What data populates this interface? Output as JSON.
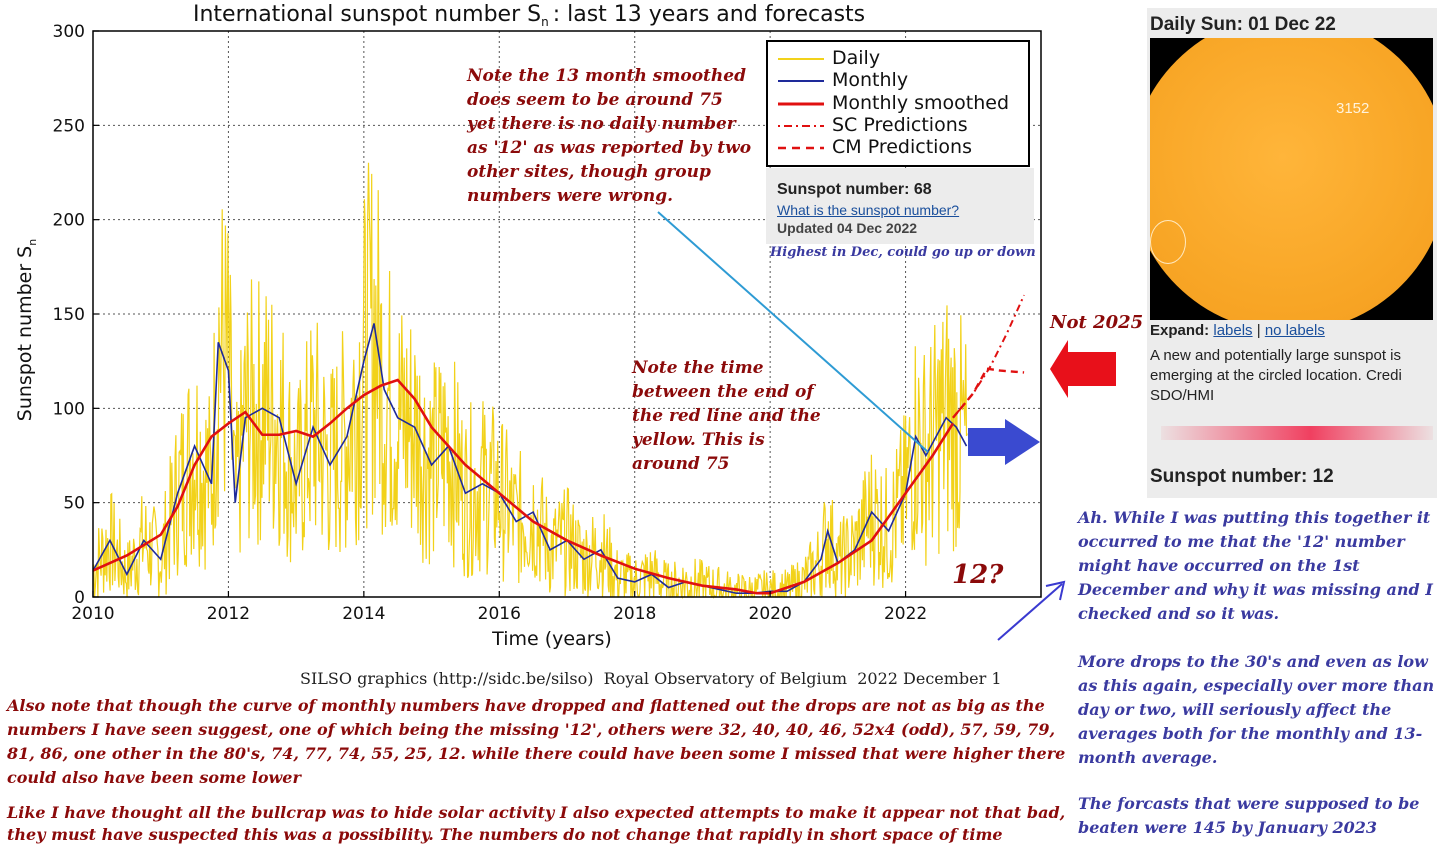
{
  "chart_data": {
    "type": "line",
    "title": "International sunspot number S",
    "title_subscript": "n",
    "title_suffix": ": last 13 years and forecasts",
    "xlabel": "Time (years)",
    "ylabel": "Sunspot number S",
    "ylabel_subscript": "n",
    "xlim": [
      2010,
      2024
    ],
    "ylim": [
      0,
      300
    ],
    "x_ticks": [
      2010,
      2012,
      2014,
      2016,
      2018,
      2020,
      2022
    ],
    "y_ticks": [
      0,
      50,
      100,
      150,
      200,
      250,
      300
    ],
    "grid": true,
    "legend_position": "top-right",
    "legend": [
      "Daily",
      "Monthly",
      "Monthly smoothed",
      "SC Predictions",
      "CM Predictions"
    ],
    "colors": {
      "daily": "#f2d21a",
      "monthly": "#1e2a9a",
      "smoothed": "#e01010",
      "predictions": "#e01010"
    },
    "series": [
      {
        "name": "Monthly",
        "x": [
          2010.0,
          2010.25,
          2010.5,
          2010.75,
          2011.0,
          2011.25,
          2011.5,
          2011.75,
          2011.85,
          2012.0,
          2012.1,
          2012.25,
          2012.5,
          2012.75,
          2013.0,
          2013.25,
          2013.5,
          2013.75,
          2014.0,
          2014.15,
          2014.3,
          2014.5,
          2014.75,
          2015.0,
          2015.25,
          2015.5,
          2015.75,
          2016.0,
          2016.25,
          2016.5,
          2016.75,
          2017.0,
          2017.25,
          2017.5,
          2017.75,
          2018.0,
          2018.25,
          2018.5,
          2018.75,
          2019.0,
          2019.25,
          2019.5,
          2019.75,
          2020.0,
          2020.25,
          2020.5,
          2020.75,
          2020.85,
          2021.0,
          2021.25,
          2021.5,
          2021.75,
          2022.0,
          2022.15,
          2022.3,
          2022.45,
          2022.6,
          2022.75,
          2022.9
        ],
        "values": [
          14,
          30,
          12,
          30,
          20,
          55,
          80,
          60,
          135,
          120,
          50,
          95,
          100,
          95,
          60,
          90,
          70,
          85,
          125,
          145,
          110,
          95,
          90,
          70,
          80,
          55,
          60,
          55,
          40,
          45,
          25,
          30,
          20,
          25,
          10,
          8,
          12,
          5,
          8,
          6,
          4,
          2,
          2,
          3,
          3,
          8,
          20,
          35,
          18,
          25,
          45,
          35,
          55,
          85,
          75,
          85,
          95,
          90,
          80
        ]
      },
      {
        "name": "Monthly smoothed",
        "x": [
          2010.0,
          2010.5,
          2011.0,
          2011.25,
          2011.5,
          2011.75,
          2012.0,
          2012.25,
          2012.5,
          2012.75,
          2013.0,
          2013.25,
          2013.5,
          2013.75,
          2014.0,
          2014.25,
          2014.5,
          2014.75,
          2015.0,
          2015.5,
          2016.0,
          2016.5,
          2017.0,
          2017.5,
          2018.0,
          2018.5,
          2019.0,
          2019.5,
          2019.8,
          2020.0,
          2020.5,
          2021.0,
          2021.5,
          2022.0,
          2022.4,
          2022.7
        ],
        "values": [
          14,
          22,
          33,
          48,
          70,
          85,
          92,
          98,
          86,
          86,
          88,
          85,
          92,
          100,
          107,
          112,
          115,
          105,
          90,
          70,
          55,
          40,
          30,
          22,
          15,
          10,
          6,
          4,
          2,
          2,
          8,
          18,
          30,
          55,
          75,
          92
        ]
      },
      {
        "name": "SC Predictions",
        "x": [
          2022.7,
          2023.0,
          2023.25,
          2023.5,
          2023.75
        ],
        "values": [
          95,
          108,
          122,
          140,
          160
        ]
      },
      {
        "name": "CM Predictions",
        "x": [
          2022.7,
          2023.0,
          2023.2,
          2023.4,
          2023.75
        ],
        "values": [
          95,
          108,
          121,
          120,
          119
        ]
      }
    ]
  },
  "legend_labels": {
    "daily": "Daily",
    "monthly": "Monthly",
    "smoothed": "Monthly smoothed",
    "sc": "SC Predictions",
    "cm": "CM Predictions"
  },
  "info_box": {
    "title": "Sunspot number: 68",
    "link": "What is the sunspot number?",
    "updated": "Updated 04 Dec 2022",
    "note": "Highest in Dec, could go up or down"
  },
  "credit": "SILSO graphics (http://sidc.be/silso)  Royal Observatory of Belgium  2022 December 1",
  "notes": {
    "smoothed_note": "Note the 13 month smoothed does seem to be around 75 yet there is no daily number as '12' as was reported by two other sites, though group numbers were wrong.",
    "time_note": "Note the time between the end of the red line and the yellow. This is around 75",
    "not_2025": "Not 2025",
    "twelve_q": "12?",
    "bottom_1": "Also note that though the curve of monthly numbers have dropped and flattened out the drops are not as big as the numbers I have seen suggest, one of which being the missing '12', others were 32, 40, 40, 46, 52x4 (odd), 57, 59, 79, 81, 86, one other in the 80's, 74, 77, 74, 55, 25, 12. while there could have been some I missed that were higher there could also have been some lower",
    "bottom_2": "Like I have thought all the bullcrap was to hide solar activity I also expected attempts to make it appear not that bad, they must have suspected this was a possibility. The numbers do not change that rapidly in short space of time",
    "right_1": "Ah. While I was putting this together it occurred to me that the '12' number might have occurred on the 1st December and why it was missing and I checked and so it was.",
    "right_2": "More drops to the 30's and even as low as this again, especially over more than day or two, will seriously affect the averages both for the monthly and 13-month average.",
    "right_3": "The forcasts that were supposed to be beaten were 145 by January 2023"
  },
  "sun_panel": {
    "title": "Daily Sun: 01 Dec 22",
    "region_label": "3152",
    "expand_label": "Expand:",
    "expand_link_1": "labels",
    "expand_sep": "|",
    "expand_link_2": "no labels",
    "description_1": "A new and potentially large sunspot is",
    "description_2": "emerging at the circled location. Credi",
    "description_3": "SDO/HMI",
    "sunspot_number": "Sunspot number: 12"
  }
}
